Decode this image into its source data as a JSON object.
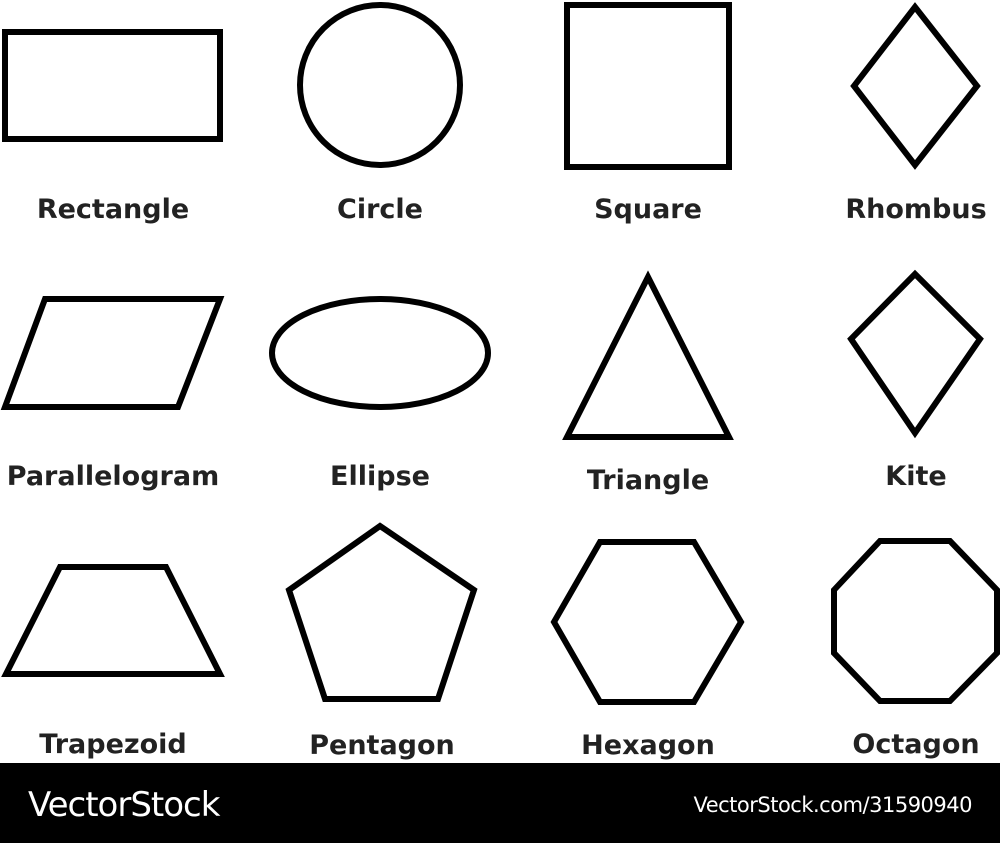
{
  "stroke_color": "#000000",
  "label_color": "#222222",
  "shapes": [
    {
      "name": "rectangle",
      "label": "Rectangle"
    },
    {
      "name": "circle",
      "label": "Circle"
    },
    {
      "name": "square",
      "label": "Square"
    },
    {
      "name": "rhombus",
      "label": "Rhombus"
    },
    {
      "name": "parallelogram",
      "label": "Parallelogram"
    },
    {
      "name": "ellipse",
      "label": "Ellipse"
    },
    {
      "name": "triangle",
      "label": "Triangle"
    },
    {
      "name": "kite",
      "label": "Kite"
    },
    {
      "name": "trapezoid",
      "label": "Trapezoid"
    },
    {
      "name": "pentagon",
      "label": "Pentagon"
    },
    {
      "name": "hexagon",
      "label": "Hexagon"
    },
    {
      "name": "octagon",
      "label": "Octagon"
    }
  ],
  "footer": {
    "brand": "VectorStock",
    "stock_id": "VectorStock.com/31590940"
  }
}
